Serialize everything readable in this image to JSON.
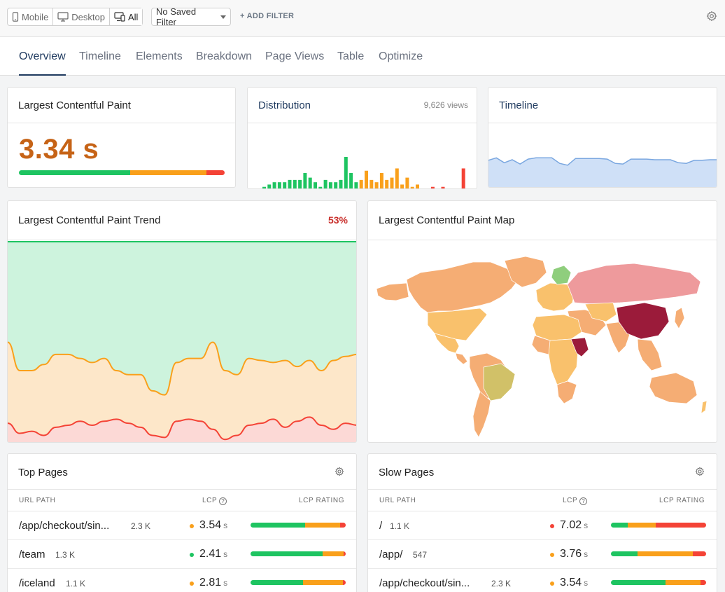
{
  "filter_bar": {
    "devices": [
      {
        "label": "Mobile",
        "icon": "mobile-icon",
        "active": false
      },
      {
        "label": "Desktop",
        "icon": "desktop-icon",
        "active": false
      },
      {
        "label": "All",
        "icon": "all-devices-icon",
        "active": true
      }
    ],
    "saved_filter": "No Saved Filter",
    "add_filter": "+ ADD FILTER",
    "settings_icon": "gear-icon"
  },
  "tabs": [
    {
      "label": "Overview",
      "active": true
    },
    {
      "label": "Timeline"
    },
    {
      "label": "Elements"
    },
    {
      "label": "Breakdown"
    },
    {
      "label": "Page Views"
    },
    {
      "label": "Table"
    },
    {
      "label": "Optimize"
    }
  ],
  "colors": {
    "good": "#1ec461",
    "needs_improvement": "#f9a01b",
    "poor": "#f44336",
    "accent": "#1f3a5f"
  },
  "lcp_card": {
    "title": "Largest Contentful Paint",
    "value": "3.34 s",
    "rating": {
      "good": 0.54,
      "needs_improvement": 0.37,
      "poor": 0.09
    }
  },
  "distribution_card": {
    "title": "Distribution",
    "views": "9,626 views",
    "chart_data": {
      "type": "bar",
      "values": [
        1,
        2,
        3,
        3,
        3,
        4,
        4,
        4,
        7,
        5,
        3,
        1,
        4,
        3,
        3,
        4,
        14,
        7,
        3,
        4,
        8,
        4,
        3,
        7,
        4,
        5,
        9,
        2,
        5,
        1,
        2,
        0,
        0,
        1,
        0,
        1,
        0,
        0,
        0,
        9
      ],
      "colors": [
        "g",
        "g",
        "g",
        "g",
        "g",
        "g",
        "g",
        "g",
        "g",
        "g",
        "g",
        "g",
        "g",
        "g",
        "g",
        "g",
        "g",
        "g",
        "g",
        "o",
        "o",
        "o",
        "o",
        "o",
        "o",
        "o",
        "o",
        "o",
        "o",
        "o",
        "o",
        "o",
        "o",
        "r",
        "r",
        "r",
        "r",
        "r",
        "r",
        "r"
      ]
    }
  },
  "timeline_card": {
    "title": "Timeline",
    "chart_data": {
      "type": "area",
      "values": [
        0.78,
        0.82,
        0.74,
        0.79,
        0.72,
        0.8,
        0.82,
        0.82,
        0.82,
        0.73,
        0.7,
        0.81,
        0.81,
        0.81,
        0.81,
        0.8,
        0.73,
        0.72,
        0.8,
        0.8,
        0.8,
        0.79,
        0.79,
        0.79,
        0.74,
        0.73,
        0.78,
        0.78,
        0.79,
        0.79
      ],
      "ylim": [
        0,
        1
      ]
    }
  },
  "trend_card": {
    "title": "Largest Contentful Paint Trend",
    "percent": "53%",
    "chart_data": {
      "type": "area",
      "series": [
        {
          "values": [
            0.5,
            0.36,
            0.36,
            0.39,
            0.44,
            0.44,
            0.42,
            0.4,
            0.42,
            0.36,
            0.34,
            0.34,
            0.26,
            0.24,
            0.4,
            0.42,
            0.42,
            0.5,
            0.36,
            0.34,
            0.42,
            0.41,
            0.4,
            0.41,
            0.38,
            0.41,
            0.36,
            0.41,
            0.43,
            0.44
          ]
        },
        {
          "values": [
            0.1,
            0.05,
            0.06,
            0.04,
            0.08,
            0.09,
            0.11,
            0.09,
            0.11,
            0.12,
            0.1,
            0.08,
            0.04,
            0.03,
            0.11,
            0.12,
            0.11,
            0.07,
            0.02,
            0.04,
            0.09,
            0.1,
            0.12,
            0.08,
            0.11,
            0.13,
            0.09,
            0.07,
            0.1,
            0.09
          ]
        }
      ],
      "ylim": [
        0,
        1
      ]
    }
  },
  "map_card": {
    "title": "Largest Contentful Paint Map"
  },
  "top_pages": {
    "title": "Top Pages",
    "col_path": "URL PATH",
    "col_lcp": "LCP",
    "col_rating": "LCP RATING",
    "rows": [
      {
        "path": "/app/checkout/sin...",
        "views": "2.3 K",
        "lcp": "3.54",
        "unit": "s",
        "status": "needs",
        "rating": {
          "good": 0.57,
          "needs_improvement": 0.37,
          "poor": 0.06
        }
      },
      {
        "path": "/team",
        "views": "1.3 K",
        "lcp": "2.41",
        "unit": "s",
        "status": "good",
        "rating": {
          "good": 0.76,
          "needs_improvement": 0.22,
          "poor": 0.02
        }
      },
      {
        "path": "/iceland",
        "views": "1.1 K",
        "lcp": "2.81",
        "unit": "s",
        "status": "needs",
        "rating": {
          "good": 0.55,
          "needs_improvement": 0.42,
          "poor": 0.03
        }
      }
    ]
  },
  "slow_pages": {
    "title": "Slow Pages",
    "col_path": "URL PATH",
    "col_lcp": "LCP",
    "col_rating": "LCP RATING",
    "rows": [
      {
        "path": "/",
        "views": "1.1 K",
        "lcp": "7.02",
        "unit": "s",
        "status": "poor",
        "rating": {
          "good": 0.18,
          "needs_improvement": 0.29,
          "poor": 0.53
        }
      },
      {
        "path": "/app/",
        "views": "547",
        "lcp": "3.76",
        "unit": "s",
        "status": "needs",
        "rating": {
          "good": 0.28,
          "needs_improvement": 0.58,
          "poor": 0.14
        }
      },
      {
        "path": "/app/checkout/sin...",
        "views": "2.3 K",
        "lcp": "3.54",
        "unit": "s",
        "status": "needs",
        "rating": {
          "good": 0.57,
          "needs_improvement": 0.37,
          "poor": 0.06
        }
      }
    ]
  }
}
